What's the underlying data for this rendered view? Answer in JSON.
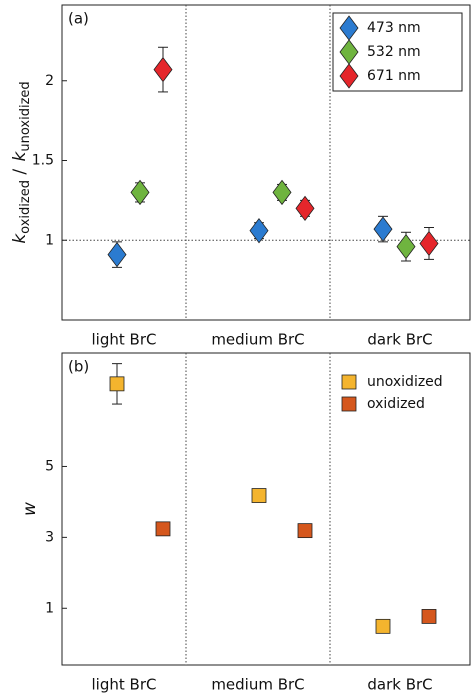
{
  "chart_data": [
    {
      "type": "scatter",
      "panel_label": "(a)",
      "marker": "diamond",
      "ylabel": [
        "k",
        "oxidized",
        " / ",
        "k",
        "unoxidized"
      ],
      "categories": [
        "light BrC",
        "medium BrC",
        "dark BrC"
      ],
      "ylim": [
        0.5,
        2.475
      ],
      "yticks": [
        1,
        1.5,
        2
      ],
      "hline": 1,
      "legend": "upper right",
      "series": [
        {
          "name": "473 nm",
          "color": "#2b7bd0",
          "values": [
            0.91,
            1.06,
            1.07
          ],
          "errors": [
            0.08,
            0.05,
            0.08
          ]
        },
        {
          "name": "532 nm",
          "color": "#6fb43f",
          "values": [
            1.3,
            1.3,
            0.96
          ],
          "errors": [
            0.06,
            0.05,
            0.09
          ]
        },
        {
          "name": "671 nm",
          "color": "#e5262b",
          "values": [
            2.07,
            1.2,
            0.98
          ],
          "errors": [
            0.14,
            0.05,
            0.1
          ]
        }
      ]
    },
    {
      "type": "scatter",
      "panel_label": "(b)",
      "marker": "square",
      "ylabel": [
        "w"
      ],
      "categories": [
        "light BrC",
        "medium BrC",
        "dark BrC"
      ],
      "ylim": [
        -0.6,
        8.2
      ],
      "yticks": [
        1,
        3,
        5
      ],
      "legend": "upper right",
      "series": [
        {
          "name": "unoxidized",
          "color": "#f4b42e",
          "values": [
            7.33,
            4.18,
            0.49
          ],
          "errors": [
            0.57,
            0.12,
            0.14
          ]
        },
        {
          "name": "oxidized",
          "color": "#d5571d",
          "values": [
            3.24,
            3.19,
            0.77
          ],
          "errors": [
            0.14,
            0.14,
            0.14
          ]
        }
      ]
    }
  ]
}
